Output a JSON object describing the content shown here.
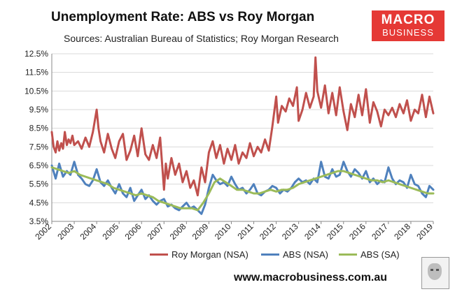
{
  "header": {
    "title": "Unemployment Rate: ABS vs Roy Morgan",
    "subtitle": "Sources: Australian Bureau of Statistics; Roy Morgan Research"
  },
  "logo": {
    "line1": "MACRO",
    "line2": "BUSINESS"
  },
  "footer": {
    "website": "www.macrobusiness.com.au"
  },
  "colors": {
    "roy_morgan": "#c0504d",
    "abs_nsa": "#4f81bd",
    "abs_sa": "#9bbb59"
  },
  "chart_data": {
    "type": "line",
    "title": "Unemployment Rate: ABS vs Roy Morgan",
    "xlabel": "",
    "ylabel": "",
    "ylim": [
      3.5,
      12.5
    ],
    "xlim": [
      2002,
      2019
    ],
    "grid": "horizontal",
    "legend_position": "bottom",
    "y_ticks": [
      "3.5%",
      "4.5%",
      "5.5%",
      "6.5%",
      "7.5%",
      "8.5%",
      "9.5%",
      "10.5%",
      "11.5%",
      "12.5%"
    ],
    "x_ticks": [
      "2002",
      "2003",
      "2004",
      "2005",
      "2006",
      "2007",
      "2008",
      "2009",
      "2010",
      "2011",
      "2012",
      "2013",
      "2014",
      "2015",
      "2016",
      "2017",
      "2018",
      "2019"
    ],
    "series": [
      {
        "name": "Roy Morgan (NSA)",
        "x": [
          2002.0,
          2002.08,
          2002.17,
          2002.25,
          2002.33,
          2002.42,
          2002.5,
          2002.58,
          2002.67,
          2002.75,
          2002.83,
          2002.92,
          2003.0,
          2003.17,
          2003.33,
          2003.5,
          2003.67,
          2003.83,
          2004.0,
          2004.08,
          2004.17,
          2004.33,
          2004.5,
          2004.67,
          2004.83,
          2005.0,
          2005.17,
          2005.33,
          2005.5,
          2005.67,
          2005.83,
          2006.0,
          2006.17,
          2006.33,
          2006.5,
          2006.67,
          2006.83,
          2007.0,
          2007.08,
          2007.17,
          2007.33,
          2007.5,
          2007.67,
          2007.83,
          2008.0,
          2008.17,
          2008.33,
          2008.5,
          2008.67,
          2008.83,
          2009.0,
          2009.17,
          2009.33,
          2009.5,
          2009.67,
          2009.83,
          2010.0,
          2010.17,
          2010.33,
          2010.5,
          2010.67,
          2010.83,
          2011.0,
          2011.17,
          2011.33,
          2011.5,
          2011.67,
          2011.83,
          2012.0,
          2012.08,
          2012.25,
          2012.42,
          2012.58,
          2012.75,
          2012.92,
          2013.0,
          2013.17,
          2013.33,
          2013.5,
          2013.67,
          2013.75,
          2013.83,
          2014.0,
          2014.17,
          2014.33,
          2014.5,
          2014.67,
          2014.83,
          2015.0,
          2015.17,
          2015.33,
          2015.5,
          2015.67,
          2015.83,
          2016.0,
          2016.17,
          2016.33,
          2016.5,
          2016.67,
          2016.83,
          2017.0,
          2017.17,
          2017.33,
          2017.5,
          2017.67,
          2017.83,
          2018.0,
          2018.17,
          2018.33,
          2018.5,
          2018.67,
          2018.83,
          2019.0
        ],
        "values": [
          8.3,
          7.5,
          7.2,
          7.8,
          7.3,
          7.7,
          7.4,
          8.3,
          7.6,
          7.9,
          7.7,
          8.1,
          7.6,
          7.8,
          7.4,
          8.0,
          7.5,
          8.3,
          9.5,
          8.5,
          7.8,
          7.2,
          8.2,
          7.4,
          6.9,
          7.8,
          8.2,
          6.8,
          7.3,
          8.1,
          7.0,
          8.5,
          7.1,
          6.8,
          7.6,
          6.9,
          8.0,
          5.2,
          6.6,
          5.8,
          6.9,
          6.0,
          6.6,
          5.6,
          6.2,
          5.3,
          5.7,
          4.9,
          6.4,
          5.6,
          7.2,
          7.8,
          6.9,
          7.6,
          6.6,
          7.4,
          6.8,
          7.6,
          6.6,
          7.2,
          6.9,
          7.7,
          7.0,
          7.5,
          7.2,
          7.9,
          7.3,
          8.6,
          10.2,
          8.8,
          9.7,
          9.4,
          10.1,
          9.7,
          10.7,
          8.9,
          9.5,
          10.4,
          9.6,
          10.2,
          12.3,
          10.5,
          9.6,
          10.8,
          9.3,
          10.4,
          9.2,
          10.7,
          9.4,
          8.4,
          9.8,
          9.1,
          10.3,
          9.2,
          10.6,
          8.8,
          9.9,
          9.4,
          8.6,
          9.5,
          9.2,
          9.6,
          9.1,
          9.8,
          9.3,
          10.0,
          8.9,
          9.5,
          9.3,
          10.3,
          9.1,
          10.2,
          9.3
        ]
      },
      {
        "name": "ABS (NSA)",
        "x": [
          2002.0,
          2002.17,
          2002.33,
          2002.5,
          2002.67,
          2002.83,
          2003.0,
          2003.17,
          2003.33,
          2003.5,
          2003.67,
          2003.83,
          2004.0,
          2004.17,
          2004.33,
          2004.5,
          2004.67,
          2004.83,
          2005.0,
          2005.17,
          2005.33,
          2005.5,
          2005.67,
          2005.83,
          2006.0,
          2006.17,
          2006.33,
          2006.5,
          2006.67,
          2006.83,
          2007.0,
          2007.17,
          2007.33,
          2007.5,
          2007.67,
          2007.83,
          2008.0,
          2008.17,
          2008.33,
          2008.5,
          2008.67,
          2008.83,
          2009.0,
          2009.17,
          2009.33,
          2009.5,
          2009.67,
          2009.83,
          2010.0,
          2010.17,
          2010.33,
          2010.5,
          2010.67,
          2010.83,
          2011.0,
          2011.17,
          2011.33,
          2011.5,
          2011.67,
          2011.83,
          2012.0,
          2012.17,
          2012.33,
          2012.5,
          2012.67,
          2012.83,
          2013.0,
          2013.17,
          2013.33,
          2013.5,
          2013.67,
          2013.83,
          2014.0,
          2014.17,
          2014.33,
          2014.5,
          2014.67,
          2014.83,
          2015.0,
          2015.17,
          2015.33,
          2015.5,
          2015.67,
          2015.83,
          2016.0,
          2016.17,
          2016.33,
          2016.5,
          2016.67,
          2016.83,
          2017.0,
          2017.17,
          2017.33,
          2017.5,
          2017.67,
          2017.83,
          2018.0,
          2018.17,
          2018.33,
          2018.5,
          2018.67,
          2018.83,
          2019.0
        ],
        "values": [
          6.5,
          5.8,
          6.6,
          5.9,
          6.2,
          6.0,
          6.7,
          6.0,
          5.8,
          5.5,
          5.4,
          5.7,
          6.3,
          5.6,
          5.4,
          5.7,
          5.3,
          5.0,
          5.5,
          5.0,
          4.8,
          5.3,
          4.6,
          4.9,
          5.2,
          4.7,
          4.9,
          4.6,
          4.4,
          4.6,
          4.7,
          4.3,
          4.4,
          4.2,
          4.1,
          4.3,
          4.5,
          4.2,
          4.3,
          4.1,
          3.9,
          4.4,
          5.3,
          6.0,
          5.7,
          5.5,
          5.6,
          5.4,
          5.9,
          5.5,
          5.2,
          5.3,
          5.0,
          5.2,
          5.5,
          5.0,
          4.9,
          5.1,
          5.2,
          5.4,
          5.3,
          5.0,
          5.2,
          5.1,
          5.3,
          5.6,
          5.8,
          5.6,
          5.7,
          5.5,
          5.8,
          5.6,
          6.7,
          5.9,
          5.8,
          6.3,
          5.9,
          6.0,
          6.7,
          6.2,
          5.9,
          6.3,
          6.1,
          5.8,
          6.2,
          5.6,
          5.8,
          5.5,
          5.7,
          5.6,
          6.4,
          5.8,
          5.5,
          5.7,
          5.6,
          5.3,
          6.0,
          5.5,
          5.4,
          5.0,
          4.8,
          5.4,
          5.2
        ]
      },
      {
        "name": "ABS (SA)",
        "x": [
          2002.0,
          2002.25,
          2002.5,
          2002.75,
          2003.0,
          2003.25,
          2003.5,
          2003.75,
          2004.0,
          2004.25,
          2004.5,
          2004.75,
          2005.0,
          2005.25,
          2005.5,
          2005.75,
          2006.0,
          2006.25,
          2006.5,
          2006.75,
          2007.0,
          2007.25,
          2007.5,
          2007.75,
          2008.0,
          2008.25,
          2008.5,
          2008.75,
          2009.0,
          2009.25,
          2009.5,
          2009.75,
          2010.0,
          2010.25,
          2010.5,
          2010.75,
          2011.0,
          2011.25,
          2011.5,
          2011.75,
          2012.0,
          2012.25,
          2012.5,
          2012.75,
          2013.0,
          2013.25,
          2013.5,
          2013.75,
          2014.0,
          2014.25,
          2014.5,
          2014.75,
          2015.0,
          2015.25,
          2015.5,
          2015.75,
          2016.0,
          2016.25,
          2016.5,
          2016.75,
          2017.0,
          2017.25,
          2017.5,
          2017.75,
          2018.0,
          2018.25,
          2018.5,
          2018.75,
          2019.0
        ],
        "values": [
          6.4,
          6.3,
          6.2,
          6.1,
          6.2,
          6.0,
          5.9,
          5.8,
          5.7,
          5.6,
          5.5,
          5.3,
          5.2,
          5.1,
          5.0,
          4.9,
          5.0,
          4.9,
          4.8,
          4.6,
          4.5,
          4.4,
          4.3,
          4.2,
          4.2,
          4.2,
          4.1,
          4.5,
          5.0,
          5.6,
          5.8,
          5.6,
          5.4,
          5.2,
          5.2,
          5.1,
          5.0,
          5.0,
          5.1,
          5.2,
          5.1,
          5.2,
          5.2,
          5.3,
          5.5,
          5.6,
          5.7,
          5.8,
          5.9,
          6.0,
          6.1,
          6.2,
          6.2,
          6.1,
          6.0,
          5.9,
          5.8,
          5.7,
          5.7,
          5.6,
          5.7,
          5.6,
          5.5,
          5.4,
          5.3,
          5.2,
          5.1,
          5.0,
          5.0
        ]
      }
    ]
  }
}
